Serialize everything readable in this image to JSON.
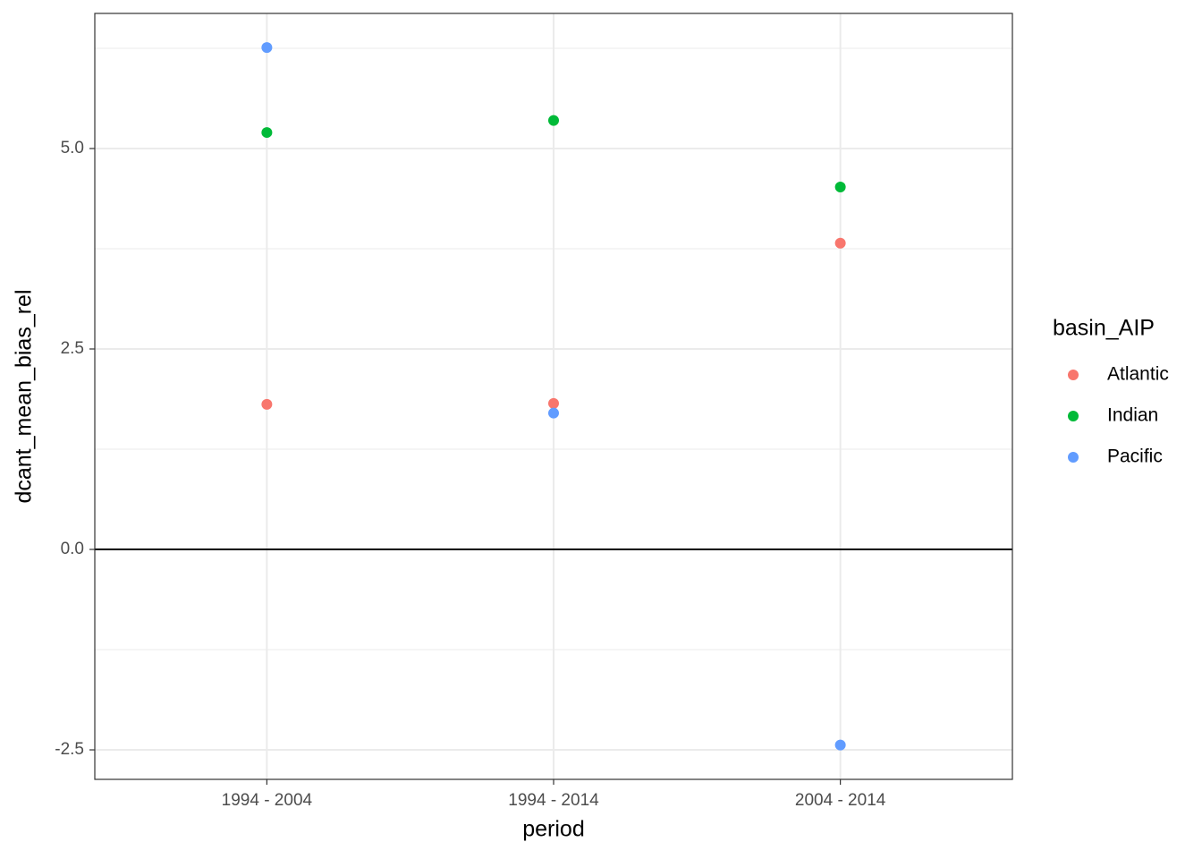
{
  "chart_data": {
    "type": "scatter",
    "x_label": "period",
    "y_label": "dcant_mean_bias_rel",
    "legend_title": "basin_AIP",
    "legend_position": "right",
    "categories": [
      "1994 - 2004",
      "1994 - 2014",
      "2004 - 2014"
    ],
    "series": [
      {
        "name": "Atlantic",
        "color": "#F8766D",
        "values": [
          1.81,
          1.82,
          3.82
        ]
      },
      {
        "name": "Indian",
        "color": "#00BA38",
        "values": [
          5.2,
          5.35,
          4.52
        ]
      },
      {
        "name": "Pacific",
        "color": "#619CFF",
        "values": [
          6.26,
          1.7,
          -2.44
        ]
      }
    ],
    "ylim": [
      -2.868,
      6.685
    ],
    "yticks": [
      -2.5,
      {
        "value": 0,
        "label": "0.0"
      },
      2.5,
      {
        "value": 5,
        "label": "5.0"
      }
    ],
    "hline": 0,
    "grid": true
  }
}
